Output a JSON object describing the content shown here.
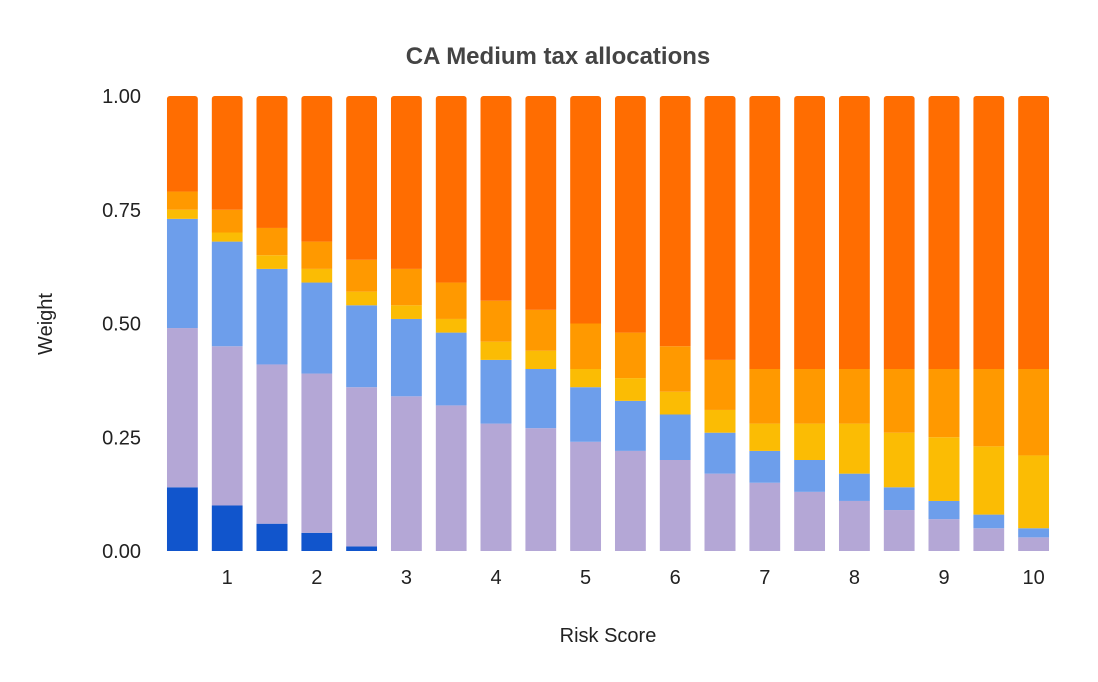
{
  "chart_data": {
    "type": "bar",
    "stacked": true,
    "title": "CA Medium tax allocations",
    "xlabel": "Risk Score",
    "ylabel": "Weight",
    "ylim": [
      0,
      1
    ],
    "y_ticks": [
      "0.00",
      "0.25",
      "0.50",
      "0.75",
      "1.00"
    ],
    "x_tick_labels": [
      "1",
      "2",
      "3",
      "4",
      "5",
      "6",
      "7",
      "8",
      "9",
      "10"
    ],
    "categories": [
      0.5,
      1,
      1.5,
      2,
      2.5,
      3,
      3.5,
      4,
      4.5,
      5,
      5.5,
      6,
      6.5,
      7,
      7.5,
      8,
      8.5,
      9,
      9.5,
      10
    ],
    "grid": false,
    "legend": "none",
    "series": [
      {
        "color": "#1155cc",
        "values": [
          0.14,
          0.1,
          0.06,
          0.04,
          0.01,
          0,
          0,
          0,
          0,
          0,
          0,
          0,
          0,
          0,
          0,
          0,
          0,
          0,
          0,
          0
        ]
      },
      {
        "color": "#b4a7d6",
        "values": [
          0.35,
          0.35,
          0.35,
          0.35,
          0.35,
          0.34,
          0.32,
          0.28,
          0.27,
          0.24,
          0.22,
          0.2,
          0.17,
          0.15,
          0.13,
          0.11,
          0.09,
          0.07,
          0.05,
          0.03
        ]
      },
      {
        "color": "#6d9eeb",
        "values": [
          0.24,
          0.23,
          0.21,
          0.2,
          0.18,
          0.17,
          0.16,
          0.14,
          0.13,
          0.12,
          0.11,
          0.1,
          0.09,
          0.07,
          0.07,
          0.06,
          0.05,
          0.04,
          0.03,
          0.02
        ]
      },
      {
        "color": "#fbbc04",
        "values": [
          0.02,
          0.02,
          0.03,
          0.03,
          0.03,
          0.03,
          0.03,
          0.04,
          0.04,
          0.04,
          0.05,
          0.05,
          0.05,
          0.06,
          0.08,
          0.11,
          0.12,
          0.14,
          0.15,
          0.16
        ]
      },
      {
        "color": "#ff9900",
        "values": [
          0.04,
          0.05,
          0.06,
          0.06,
          0.07,
          0.08,
          0.08,
          0.09,
          0.09,
          0.1,
          0.1,
          0.1,
          0.11,
          0.12,
          0.12,
          0.12,
          0.14,
          0.15,
          0.17,
          0.19
        ]
      },
      {
        "color": "#ff6d01",
        "values": [
          0.21,
          0.25,
          0.29,
          0.32,
          0.36,
          0.38,
          0.41,
          0.45,
          0.47,
          0.5,
          0.52,
          0.55,
          0.58,
          0.6,
          0.6,
          0.6,
          0.6,
          0.6,
          0.6,
          0.6
        ]
      }
    ]
  }
}
